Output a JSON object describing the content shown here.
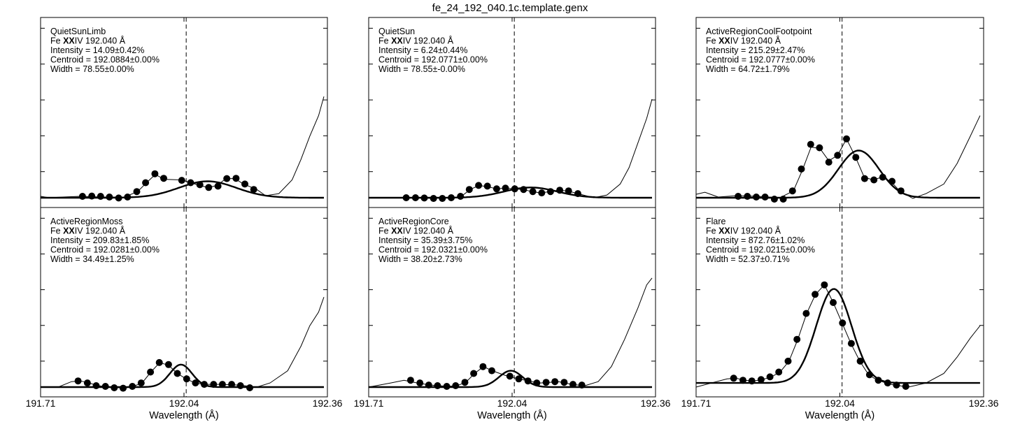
{
  "figure": {
    "title": "fe_24_192_040.1c.template.genx"
  },
  "chart_data": [
    {
      "type": "line",
      "title": "QuietSunLimb",
      "line_label": {
        "pre": "Fe ",
        "bold": "XX",
        "post": "IV 192.040 Å"
      },
      "stats": [
        "Intensity = 14.09±0.42%",
        "Centroid = 192.0884±0.00%",
        "Width = 78.55±0.00%"
      ],
      "xlabel": "",
      "xlim": [
        191.71,
        192.36
      ],
      "ylim": [
        0,
        1.0
      ],
      "xtick_labels": [],
      "reference_line": 192.04,
      "points": [
        [
          191.805,
          0.01
        ],
        [
          191.826,
          0.012
        ],
        [
          191.846,
          0.01
        ],
        [
          191.866,
          0.005
        ],
        [
          191.887,
          -0.002
        ],
        [
          191.907,
          0.005
        ],
        [
          191.928,
          0.045
        ],
        [
          191.948,
          0.11
        ],
        [
          191.969,
          0.175
        ],
        [
          191.989,
          0.142
        ],
        [
          192.03,
          0.127
        ],
        [
          192.05,
          0.11
        ],
        [
          192.071,
          0.095
        ],
        [
          192.091,
          0.075
        ],
        [
          192.112,
          0.085
        ],
        [
          192.132,
          0.14
        ],
        [
          192.153,
          0.142
        ],
        [
          192.173,
          0.1
        ],
        [
          192.193,
          0.06
        ]
      ],
      "model": [
        [
          191.71,
          0.01
        ],
        [
          191.73,
          0.0
        ],
        [
          191.76,
          0.005
        ],
        [
          191.8,
          0.01
        ],
        [
          191.85,
          0.005
        ],
        [
          191.9,
          0.005
        ],
        [
          191.93,
          0.045
        ],
        [
          191.95,
          0.11
        ],
        [
          191.97,
          0.17
        ],
        [
          191.99,
          0.135
        ],
        [
          192.03,
          0.13
        ],
        [
          192.05,
          0.11
        ],
        [
          192.07,
          0.09
        ],
        [
          192.09,
          0.075
        ],
        [
          192.11,
          0.09
        ],
        [
          192.13,
          0.14
        ],
        [
          192.15,
          0.14
        ],
        [
          192.17,
          0.1
        ],
        [
          192.2,
          0.06
        ],
        [
          192.22,
          0.015
        ],
        [
          192.25,
          0.03
        ],
        [
          192.28,
          0.13
        ],
        [
          192.3,
          0.28
        ],
        [
          192.32,
          0.45
        ],
        [
          192.34,
          0.6
        ],
        [
          192.352,
          0.74
        ]
      ],
      "fit": {
        "amplitude": 0.12,
        "center": 192.0884,
        "sigma": 0.065,
        "baseline": 0.0
      }
    },
    {
      "type": "line",
      "title": "QuietSun",
      "line_label": {
        "pre": "Fe ",
        "bold": "XX",
        "post": "IV 192.040 Å"
      },
      "stats": [
        "Intensity = 6.24±0.44%",
        "Centroid = 192.0771±0.00%",
        "Width = 78.55±-0.00%"
      ],
      "xlabel": "",
      "xlim": [
        191.71,
        192.36
      ],
      "ylim": [
        0,
        1.0
      ],
      "xtick_labels": [],
      "reference_line": 192.04,
      "points": [
        [
          191.795,
          0.0
        ],
        [
          191.816,
          0.0
        ],
        [
          191.836,
          -0.002
        ],
        [
          191.857,
          -0.005
        ],
        [
          191.877,
          -0.005
        ],
        [
          191.897,
          0.0
        ],
        [
          191.918,
          0.01
        ],
        [
          191.938,
          0.06
        ],
        [
          191.959,
          0.09
        ],
        [
          191.979,
          0.085
        ],
        [
          192.0,
          0.065
        ],
        [
          192.02,
          0.07
        ],
        [
          192.041,
          0.065
        ],
        [
          192.061,
          0.06
        ],
        [
          192.082,
          0.045
        ],
        [
          192.102,
          0.035
        ],
        [
          192.122,
          0.045
        ],
        [
          192.143,
          0.055
        ],
        [
          192.163,
          0.05
        ],
        [
          192.184,
          0.03
        ]
      ],
      "model": [
        [
          191.71,
          0.0
        ],
        [
          191.76,
          -0.002
        ],
        [
          191.8,
          0.0
        ],
        [
          191.85,
          -0.004
        ],
        [
          191.9,
          0.0
        ],
        [
          191.92,
          0.01
        ],
        [
          191.94,
          0.06
        ],
        [
          191.96,
          0.09
        ],
        [
          191.98,
          0.08
        ],
        [
          192.0,
          0.065
        ],
        [
          192.02,
          0.07
        ],
        [
          192.04,
          0.065
        ],
        [
          192.06,
          0.06
        ],
        [
          192.08,
          0.045
        ],
        [
          192.1,
          0.035
        ],
        [
          192.12,
          0.045
        ],
        [
          192.14,
          0.055
        ],
        [
          192.16,
          0.05
        ],
        [
          192.19,
          0.025
        ],
        [
          192.22,
          0.0
        ],
        [
          192.25,
          0.02
        ],
        [
          192.28,
          0.1
        ],
        [
          192.3,
          0.22
        ],
        [
          192.32,
          0.4
        ],
        [
          192.34,
          0.58
        ],
        [
          192.352,
          0.72
        ]
      ],
      "fit": {
        "amplitude": 0.075,
        "center": 192.0771,
        "sigma": 0.06,
        "baseline": 0.0
      }
    },
    {
      "type": "line",
      "title": "ActiveRegionCoolFootpoint",
      "line_label": {
        "pre": "Fe ",
        "bold": "XX",
        "post": "IV 192.040 Å"
      },
      "stats": [
        "Intensity = 215.29±2.47%",
        "Centroid = 192.0777±0.00%",
        "Width = 64.72±1.79%"
      ],
      "xlabel": "",
      "xlim": [
        191.71,
        192.36
      ],
      "ylim": [
        0,
        1.0
      ],
      "xtick_labels": [],
      "reference_line": 192.04,
      "points": [
        [
          191.805,
          0.01
        ],
        [
          191.826,
          0.01
        ],
        [
          191.846,
          0.005
        ],
        [
          191.866,
          0.005
        ],
        [
          191.887,
          -0.01
        ],
        [
          191.907,
          -0.01
        ],
        [
          191.928,
          0.05
        ],
        [
          191.948,
          0.21
        ],
        [
          191.969,
          0.39
        ],
        [
          191.989,
          0.365
        ],
        [
          192.01,
          0.26
        ],
        [
          192.03,
          0.31
        ],
        [
          192.05,
          0.43
        ],
        [
          192.071,
          0.295
        ],
        [
          192.091,
          0.14
        ],
        [
          192.112,
          0.13
        ],
        [
          192.132,
          0.15
        ],
        [
          192.153,
          0.12
        ],
        [
          192.173,
          0.05
        ]
      ],
      "model": [
        [
          191.71,
          0.025
        ],
        [
          191.73,
          0.04
        ],
        [
          191.76,
          0.005
        ],
        [
          191.8,
          0.015
        ],
        [
          191.85,
          0.01
        ],
        [
          191.9,
          0.0
        ],
        [
          191.93,
          0.05
        ],
        [
          191.95,
          0.2
        ],
        [
          191.97,
          0.37
        ],
        [
          191.99,
          0.36
        ],
        [
          192.01,
          0.27
        ],
        [
          192.03,
          0.31
        ],
        [
          192.05,
          0.43
        ],
        [
          192.07,
          0.3
        ],
        [
          192.09,
          0.15
        ],
        [
          192.11,
          0.13
        ],
        [
          192.13,
          0.15
        ],
        [
          192.15,
          0.12
        ],
        [
          192.17,
          0.05
        ],
        [
          192.2,
          -0.005
        ],
        [
          192.23,
          0.03
        ],
        [
          192.27,
          0.1
        ],
        [
          192.3,
          0.25
        ],
        [
          192.33,
          0.45
        ],
        [
          192.352,
          0.6
        ]
      ],
      "fit": {
        "amplitude": 0.345,
        "center": 192.0777,
        "sigma": 0.046,
        "baseline": 0.0
      }
    },
    {
      "type": "line",
      "title": "ActiveRegionMoss",
      "line_label": {
        "pre": "Fe ",
        "bold": "XX",
        "post": "IV 192.040 Å"
      },
      "stats": [
        "Intensity = 209.83±1.85%",
        "Centroid = 192.0281±0.00%",
        "Width = 34.49±1.25%"
      ],
      "xlabel": "Wavelength (Å)",
      "xlim": [
        191.71,
        192.36
      ],
      "ylim": [
        0,
        1.0
      ],
      "xtick_labels": [
        "191.71",
        "192.04",
        "192.36"
      ],
      "reference_line": 192.04,
      "points": [
        [
          191.795,
          0.045
        ],
        [
          191.816,
          0.03
        ],
        [
          191.836,
          0.01
        ],
        [
          191.857,
          0.005
        ],
        [
          191.877,
          -0.005
        ],
        [
          191.897,
          -0.008
        ],
        [
          191.918,
          0.005
        ],
        [
          191.938,
          0.03
        ],
        [
          191.959,
          0.11
        ],
        [
          191.979,
          0.18
        ],
        [
          192.0,
          0.165
        ],
        [
          192.02,
          0.1
        ],
        [
          192.041,
          0.06
        ],
        [
          192.061,
          0.03
        ],
        [
          192.081,
          0.02
        ],
        [
          192.102,
          0.02
        ],
        [
          192.122,
          0.02
        ],
        [
          192.143,
          0.02
        ],
        [
          192.163,
          0.01
        ],
        [
          192.184,
          -0.005
        ]
      ],
      "model": [
        [
          191.71,
          0.0
        ],
        [
          191.75,
          0.0
        ],
        [
          191.78,
          0.04
        ],
        [
          191.8,
          0.045
        ],
        [
          191.82,
          0.03
        ],
        [
          191.84,
          0.01
        ],
        [
          191.87,
          0.0
        ],
        [
          191.9,
          -0.008
        ],
        [
          191.92,
          0.005
        ],
        [
          191.94,
          0.03
        ],
        [
          191.96,
          0.11
        ],
        [
          191.98,
          0.18
        ],
        [
          192.0,
          0.16
        ],
        [
          192.02,
          0.1
        ],
        [
          192.04,
          0.06
        ],
        [
          192.06,
          0.03
        ],
        [
          192.08,
          0.02
        ],
        [
          192.12,
          0.02
        ],
        [
          192.16,
          0.015
        ],
        [
          192.2,
          0.0
        ],
        [
          192.23,
          0.03
        ],
        [
          192.27,
          0.12
        ],
        [
          192.3,
          0.3
        ],
        [
          192.32,
          0.45
        ],
        [
          192.34,
          0.55
        ],
        [
          192.352,
          0.66
        ]
      ],
      "fit": {
        "amplitude": 0.165,
        "center": 192.0281,
        "sigma": 0.025,
        "baseline": 0.0
      }
    },
    {
      "type": "line",
      "title": "ActiveRegionCore",
      "line_label": {
        "pre": "Fe ",
        "bold": "XX",
        "post": "IV 192.040 Å"
      },
      "stats": [
        "Intensity = 35.39±3.75%",
        "Centroid = 192.0321±0.00%",
        "Width = 38.20±2.73%"
      ],
      "xlabel": "Wavelength (Å)",
      "xlim": [
        191.71,
        192.36
      ],
      "ylim": [
        0,
        1.0
      ],
      "xtick_labels": [
        "191.71",
        "192.04",
        "192.36"
      ],
      "reference_line": 192.04,
      "points": [
        [
          191.805,
          0.05
        ],
        [
          191.826,
          0.03
        ],
        [
          191.846,
          0.015
        ],
        [
          191.866,
          0.01
        ],
        [
          191.887,
          0.005
        ],
        [
          191.907,
          0.01
        ],
        [
          191.928,
          0.035
        ],
        [
          191.948,
          0.1
        ],
        [
          191.969,
          0.15
        ],
        [
          191.989,
          0.12
        ],
        [
          192.03,
          0.08
        ],
        [
          192.05,
          0.06
        ],
        [
          192.071,
          0.045
        ],
        [
          192.091,
          0.03
        ],
        [
          192.112,
          0.035
        ],
        [
          192.132,
          0.04
        ],
        [
          192.153,
          0.035
        ],
        [
          192.173,
          0.02
        ],
        [
          192.193,
          0.015
        ]
      ],
      "model": [
        [
          191.71,
          0.0
        ],
        [
          191.76,
          0.03
        ],
        [
          191.79,
          0.05
        ],
        [
          191.82,
          0.03
        ],
        [
          191.85,
          0.015
        ],
        [
          191.89,
          0.005
        ],
        [
          191.91,
          0.01
        ],
        [
          191.93,
          0.035
        ],
        [
          191.95,
          0.1
        ],
        [
          191.97,
          0.15
        ],
        [
          191.99,
          0.12
        ],
        [
          192.02,
          0.085
        ],
        [
          192.05,
          0.06
        ],
        [
          192.08,
          0.04
        ],
        [
          192.1,
          0.03
        ],
        [
          192.12,
          0.035
        ],
        [
          192.14,
          0.04
        ],
        [
          192.17,
          0.02
        ],
        [
          192.2,
          0.01
        ],
        [
          192.23,
          0.04
        ],
        [
          192.26,
          0.15
        ],
        [
          192.29,
          0.35
        ],
        [
          192.32,
          0.58
        ],
        [
          192.34,
          0.75
        ],
        [
          192.352,
          0.8
        ]
      ],
      "fit": {
        "amplitude": 0.12,
        "center": 192.0321,
        "sigma": 0.027,
        "baseline": 0.0
      }
    },
    {
      "type": "line",
      "title": "Flare",
      "line_label": {
        "pre": "Fe ",
        "bold": "XX",
        "post": "IV 192.040 Å"
      },
      "stats": [
        "Intensity = 872.76±1.02%",
        "Centroid = 192.0215±0.00%",
        "Width = 52.37±0.71%"
      ],
      "xlabel": "Wavelength (Å)",
      "xlim": [
        191.71,
        192.36
      ],
      "ylim": [
        0,
        1.0
      ],
      "xtick_labels": [
        "191.71",
        "192.04",
        "192.36"
      ],
      "reference_line": 192.04,
      "points": [
        [
          191.795,
          0.065
        ],
        [
          191.816,
          0.05
        ],
        [
          191.836,
          0.045
        ],
        [
          191.857,
          0.055
        ],
        [
          191.877,
          0.075
        ],
        [
          191.897,
          0.11
        ],
        [
          191.918,
          0.19
        ],
        [
          191.938,
          0.35
        ],
        [
          191.959,
          0.54
        ],
        [
          191.979,
          0.68
        ],
        [
          192.0,
          0.75
        ],
        [
          192.02,
          0.62
        ],
        [
          192.041,
          0.47
        ],
        [
          192.061,
          0.32
        ],
        [
          192.081,
          0.19
        ],
        [
          192.102,
          0.09
        ],
        [
          192.122,
          0.05
        ],
        [
          192.143,
          0.03
        ],
        [
          192.163,
          0.015
        ],
        [
          192.184,
          0.005
        ]
      ],
      "model": [
        [
          191.71,
          0.0
        ],
        [
          191.75,
          0.035
        ],
        [
          191.78,
          0.06
        ],
        [
          191.8,
          0.065
        ],
        [
          191.82,
          0.05
        ],
        [
          191.84,
          0.045
        ],
        [
          191.86,
          0.055
        ],
        [
          191.88,
          0.075
        ],
        [
          191.9,
          0.11
        ],
        [
          191.92,
          0.19
        ],
        [
          191.94,
          0.35
        ],
        [
          191.96,
          0.54
        ],
        [
          191.98,
          0.68
        ],
        [
          192.0,
          0.75
        ],
        [
          192.02,
          0.62
        ],
        [
          192.04,
          0.47
        ],
        [
          192.06,
          0.32
        ],
        [
          192.08,
          0.19
        ],
        [
          192.1,
          0.09
        ],
        [
          192.12,
          0.05
        ],
        [
          192.15,
          0.02
        ],
        [
          192.19,
          0.0
        ],
        [
          192.23,
          0.03
        ],
        [
          192.27,
          0.1
        ],
        [
          192.3,
          0.22
        ],
        [
          192.33,
          0.36
        ],
        [
          192.352,
          0.45
        ]
      ],
      "fit": {
        "amplitude": 0.69,
        "center": 192.0215,
        "sigma": 0.04,
        "baseline": 0.03
      }
    }
  ]
}
